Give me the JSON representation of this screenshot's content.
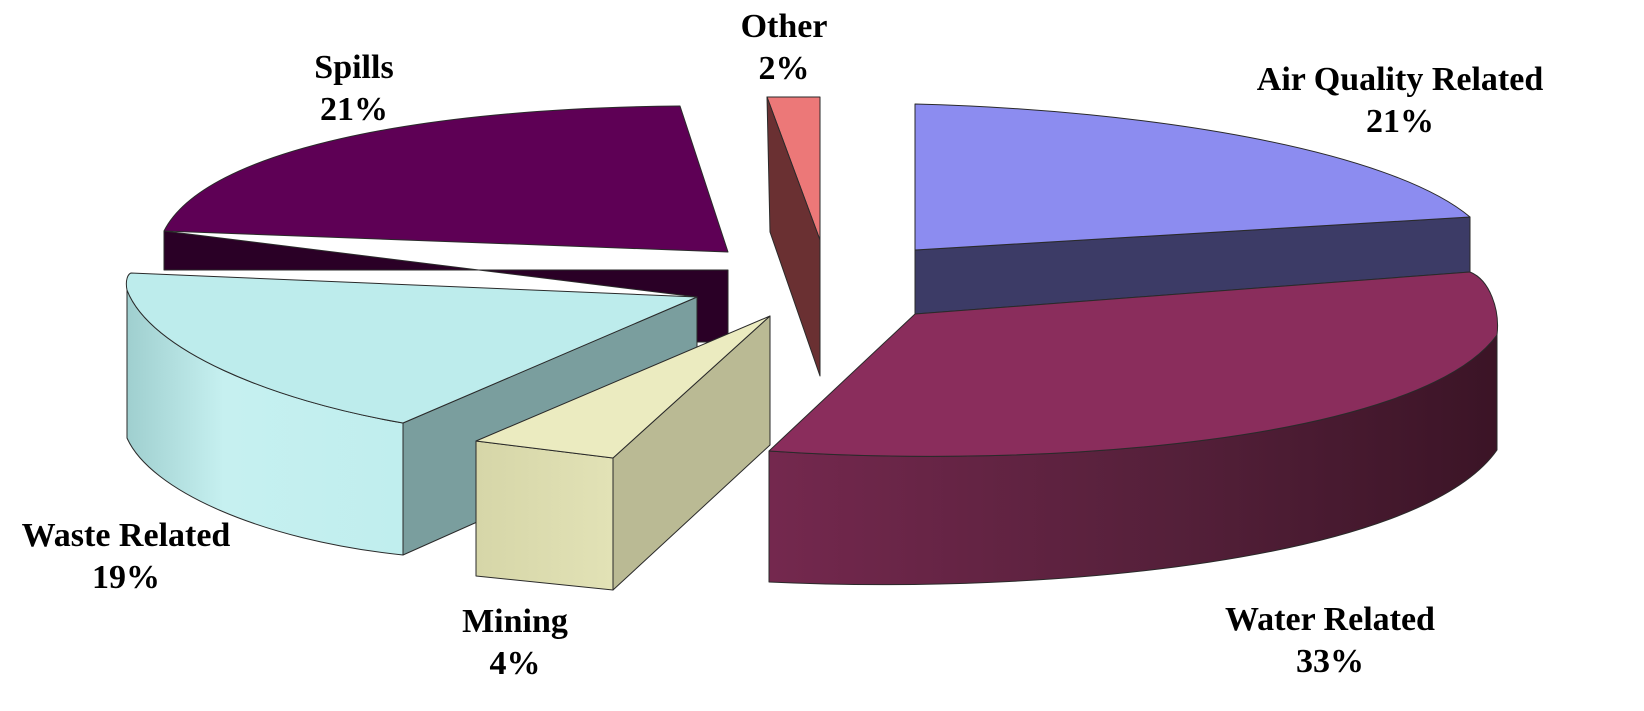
{
  "chart_data": {
    "type": "pie",
    "style": "3d-exploded",
    "title": "",
    "slices": [
      {
        "label": "Air Quality Related",
        "value": 21,
        "percent_label": "21%",
        "color": "#8C8CF0"
      },
      {
        "label": "Water Related",
        "value": 33,
        "percent_label": "33%",
        "color": "#8A2D5C"
      },
      {
        "label": "Mining",
        "value": 4,
        "percent_label": "4%",
        "color": "#EBEBC0"
      },
      {
        "label": "Waste Related",
        "value": 19,
        "percent_label": "19%",
        "color": "#BDECEC"
      },
      {
        "label": "Spills",
        "value": 21,
        "percent_label": "21%",
        "color": "#5E0055"
      },
      {
        "label": "Other",
        "value": 2,
        "percent_label": "2%",
        "color": "#EC7878"
      }
    ],
    "legend": "none",
    "grid": false
  }
}
